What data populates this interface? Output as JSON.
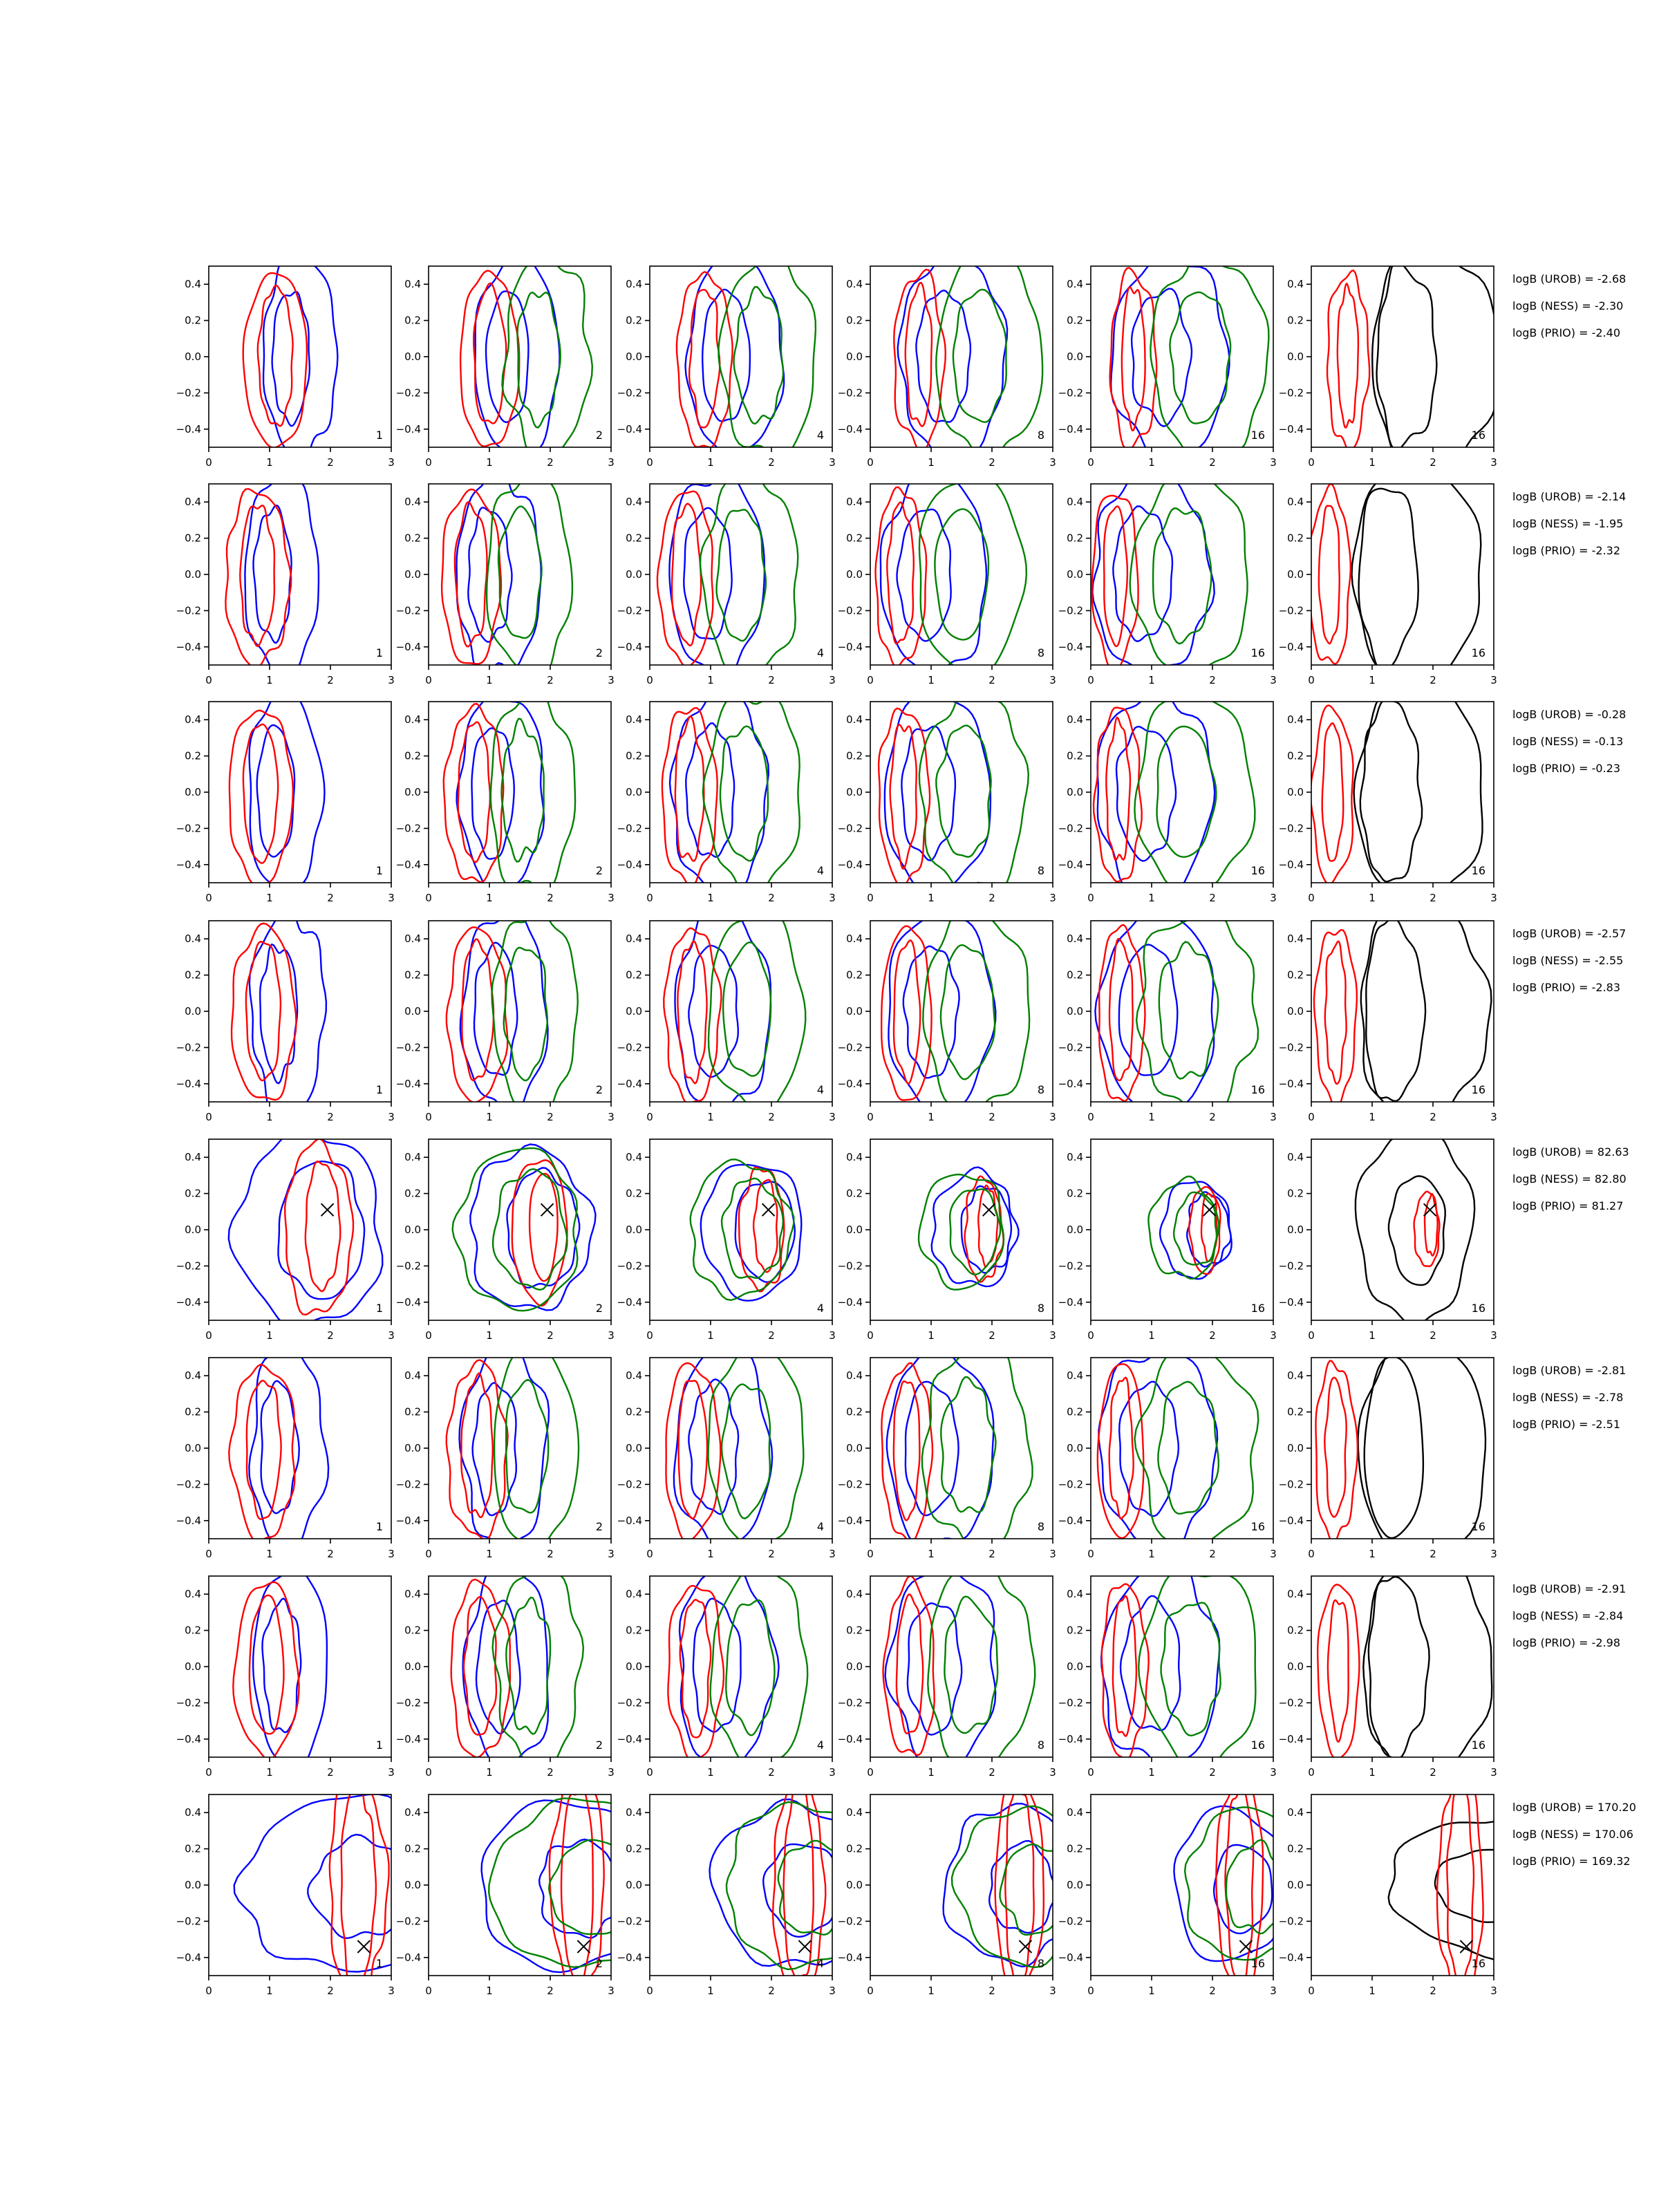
{
  "chart_data": {
    "type": "contour",
    "layout": "8 rows x 6 columns of contour panels, with per-row Bayes factor annotations at right",
    "shared_axes": {
      "xlim": [
        0,
        3
      ],
      "ylim": [
        -0.5,
        0.5
      ],
      "xticks": [
        0,
        1,
        2,
        3
      ],
      "yticks": [
        -0.4,
        -0.2,
        0.0,
        0.2,
        0.4
      ],
      "xtick_labels": [
        "0",
        "1",
        "2",
        "3"
      ],
      "ytick_labels": [
        "−0.4",
        "−0.2",
        "0.0",
        "0.2",
        "0.4"
      ],
      "xlabel": "",
      "ylabel": ""
    },
    "column_labels": [
      "1",
      "2",
      "4",
      "8",
      "16",
      "16"
    ],
    "series_colors": {
      "blue": "#0000ff",
      "red": "#ff0000",
      "green": "#008000",
      "black": "#000000"
    },
    "panel_series": [
      [
        "blue",
        "red"
      ],
      [
        "blue",
        "red",
        "green"
      ],
      [
        "blue",
        "red",
        "green"
      ],
      [
        "blue",
        "red",
        "green"
      ],
      [
        "blue",
        "red",
        "green"
      ],
      [
        "black",
        "red"
      ]
    ],
    "rows": [
      {
        "type": "broad",
        "cx": 1.35,
        "marker": null,
        "bf": [
          "logB (UROB) = -2.68",
          "logB (NESS) = -2.30",
          "logB (PRIO) = -2.40"
        ]
      },
      {
        "type": "broad",
        "cx": 1.05,
        "marker": null,
        "bf": [
          "logB (UROB) = -2.14",
          "logB (NESS) = -1.95",
          "logB (PRIO) = -2.32"
        ]
      },
      {
        "type": "broad",
        "cx": 1.1,
        "marker": null,
        "bf": [
          "logB (UROB) = -0.28",
          "logB (NESS) = -0.13",
          "logB (PRIO) = -0.23"
        ]
      },
      {
        "type": "broad",
        "cx": 1.15,
        "marker": null,
        "bf": [
          "logB (UROB) = -2.57",
          "logB (NESS) = -2.55",
          "logB (PRIO) = -2.83"
        ]
      },
      {
        "type": "peak",
        "cx": 1.95,
        "cy": 0.11,
        "marker": [
          1.95,
          0.11
        ],
        "bf": [
          "logB (UROB) = 82.63",
          "logB (NESS) = 82.80",
          "logB (PRIO) = 81.27"
        ]
      },
      {
        "type": "broad",
        "cx": 1.15,
        "marker": null,
        "bf": [
          "logB (UROB) = -2.81",
          "logB (NESS) = -2.78",
          "logB (PRIO) = -2.51"
        ]
      },
      {
        "type": "broad",
        "cx": 1.2,
        "marker": null,
        "bf": [
          "logB (UROB) = -2.91",
          "logB (NESS) = -2.84",
          "logB (PRIO) = -2.98"
        ]
      },
      {
        "type": "edge",
        "cx": 2.55,
        "cy": -0.34,
        "marker": [
          2.55,
          -0.34
        ],
        "bf": [
          "logB (UROB) = 170.20",
          "logB (NESS) = 170.06",
          "logB (PRIO) = 169.32"
        ]
      }
    ]
  }
}
